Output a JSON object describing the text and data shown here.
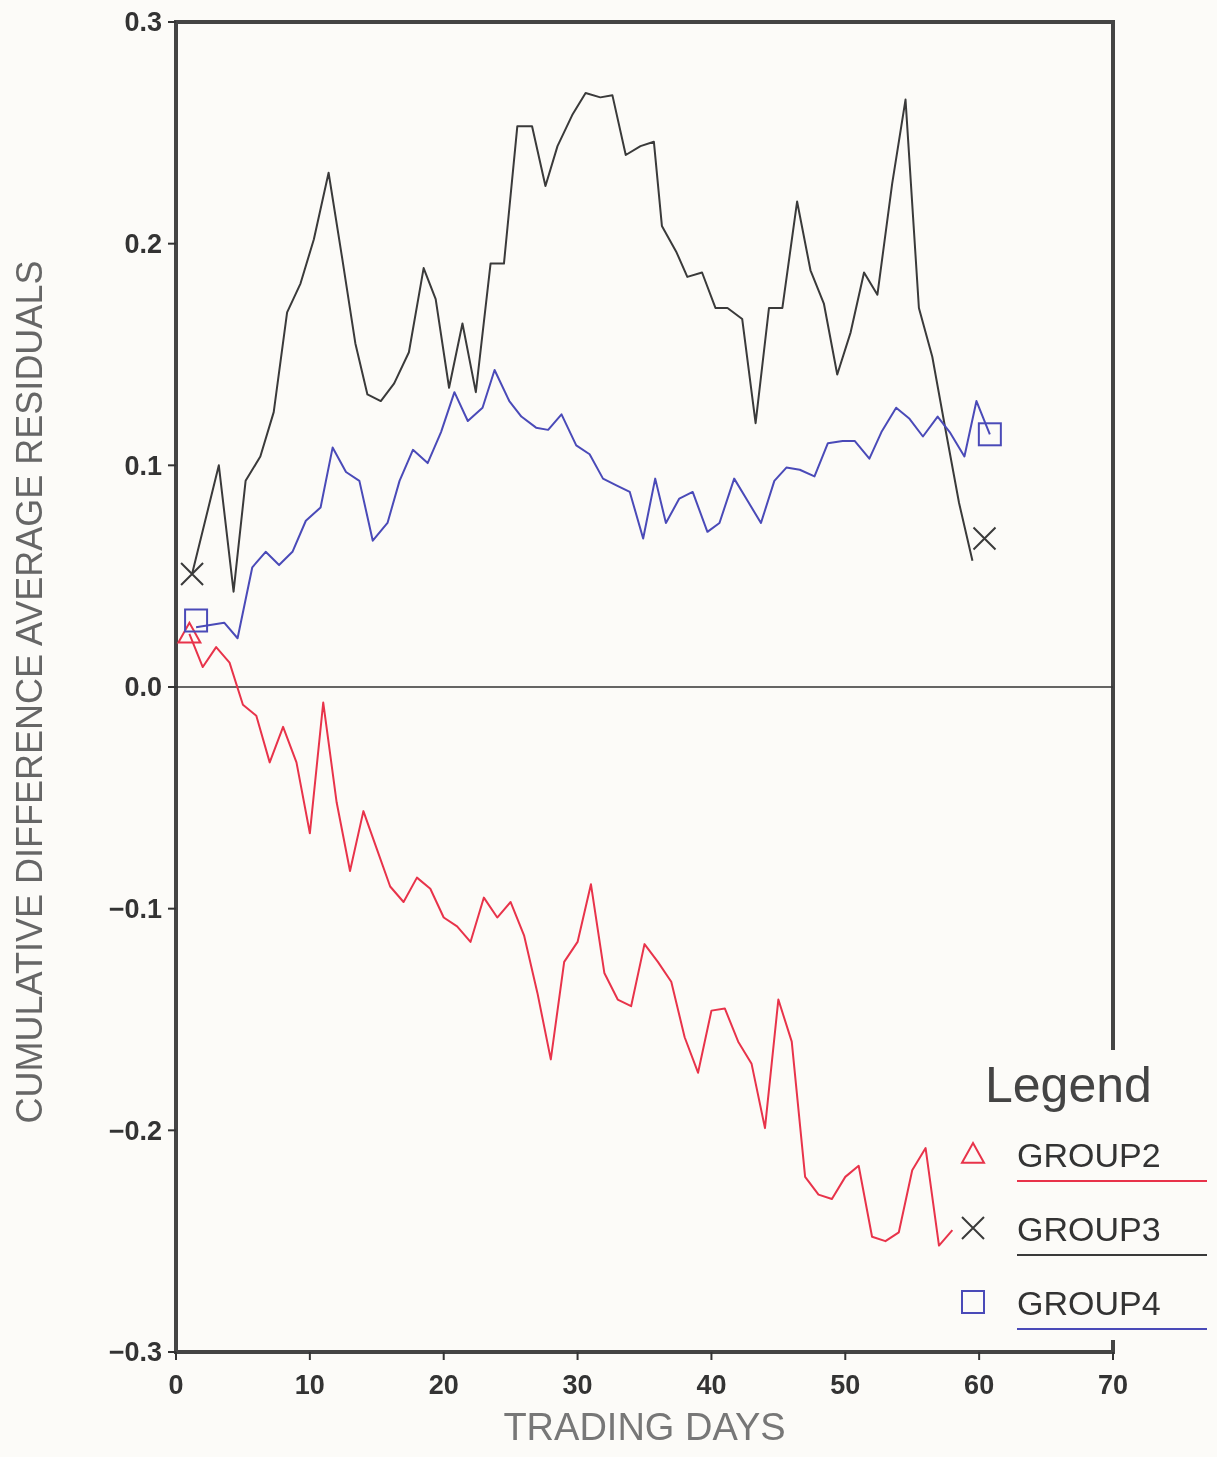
{
  "chart_data": {
    "type": "line",
    "xlabel": "TRADING DAYS",
    "ylabel": "CUMULATIVE DIFFERENCE AVERAGE RESIDUALS",
    "legend_title": "Legend",
    "legend": "bottom right",
    "xlim": [
      0,
      70
    ],
    "xticks": [
      0,
      10,
      20,
      30,
      40,
      50,
      60,
      70
    ],
    "ylim": [
      -0.3,
      0.3
    ],
    "yticks": [
      {
        "value": -0.3,
        "label": "−0.3"
      },
      {
        "value": -0.2,
        "label": "−0.2"
      },
      {
        "value": -0.1,
        "label": "−0.1"
      },
      {
        "value": 0,
        "label": "0.0"
      },
      {
        "value": 0.1,
        "label": "0.1"
      },
      {
        "value": 0.2,
        "label": "0.2"
      },
      {
        "value": 0.3,
        "label": "0.3"
      }
    ],
    "ref_lines": [
      {
        "axis": "y",
        "value": 0,
        "color": "#333333"
      }
    ],
    "line_style": "solid",
    "series": [
      {
        "name": "GROUP2",
        "color": "#e8334a",
        "x": [
          1,
          2,
          3,
          4,
          5,
          6,
          7,
          8,
          9,
          10,
          11,
          12,
          13,
          14,
          15,
          16,
          17,
          18,
          19,
          20,
          21,
          22,
          23,
          24,
          25,
          26,
          27,
          28,
          29,
          30,
          31,
          32,
          33,
          34,
          35,
          36,
          37,
          38,
          39,
          40,
          41,
          42,
          43,
          44,
          45,
          46,
          47,
          48,
          49,
          50,
          51,
          52,
          53,
          54,
          55,
          56,
          57,
          58
        ],
        "values": [
          0.024,
          0.009,
          0.018,
          0.011,
          -0.008,
          -0.013,
          -0.034,
          -0.018,
          -0.034,
          -0.066,
          -0.007,
          -0.052,
          -0.083,
          -0.056,
          -0.073,
          -0.09,
          -0.097,
          -0.086,
          -0.091,
          -0.104,
          -0.108,
          -0.115,
          -0.095,
          -0.104,
          -0.097,
          -0.112,
          -0.138,
          -0.168,
          -0.124,
          -0.115,
          -0.089,
          -0.129,
          -0.141,
          -0.144,
          -0.116,
          -0.124,
          -0.133,
          -0.158,
          -0.174,
          -0.146,
          -0.145,
          -0.16,
          -0.17,
          -0.199,
          -0.141,
          -0.16,
          -0.221,
          -0.229,
          -0.231,
          -0.221,
          -0.216,
          -0.248,
          -0.25,
          -0.246,
          -0.218,
          -0.208,
          -0.252,
          -0.245
        ]
      },
      {
        "type": "scatter",
        "color": "#e8334a",
        "marker": "triangle",
        "x": [
          1
        ],
        "values": [
          0.024
        ]
      },
      {
        "name": "GROUP3",
        "color": "#3a3a3a",
        "x": [
          1.2,
          3.2,
          4.3,
          5.2,
          6.3,
          7.3,
          8.3,
          9.3,
          10.3,
          11.4,
          12.4,
          13.4,
          14.3,
          15.3,
          16.3,
          17.4,
          18.5,
          19.4,
          20.4,
          21.4,
          22.4,
          23.5,
          24.5,
          25.5,
          26.6,
          27.6,
          28.5,
          29.6,
          30.6,
          31.7,
          32.6,
          33.6,
          34.7,
          35.7,
          36.3,
          37.4,
          38.2,
          39.3,
          40.3,
          41.2,
          42.3,
          43.3,
          44.3,
          45.3,
          46.4,
          47.4,
          48.4,
          49.4,
          50.4,
          51.4,
          52.4,
          53.5,
          54.5,
          55.5,
          56.5,
          57.4,
          58.5,
          59.5
        ],
        "values": [
          0.051,
          0.1,
          0.043,
          0.093,
          0.104,
          0.124,
          0.169,
          0.182,
          0.202,
          0.232,
          0.194,
          0.155,
          0.132,
          0.129,
          0.137,
          0.151,
          0.189,
          0.175,
          0.135,
          0.164,
          0.133,
          0.191,
          0.191,
          0.253,
          0.253,
          0.226,
          0.244,
          0.258,
          0.268,
          0.266,
          0.267,
          0.24,
          0.244,
          0.246,
          0.208,
          0.196,
          0.185,
          0.187,
          0.171,
          0.171,
          0.166,
          0.119,
          0.171,
          0.171,
          0.219,
          0.188,
          0.173,
          0.141,
          0.16,
          0.187,
          0.177,
          0.227,
          0.265,
          0.171,
          0.149,
          0.119,
          0.083,
          0.057
        ]
      },
      {
        "type": "scatter",
        "color": "#3a3a3a",
        "marker": "cross",
        "x": [
          1.2,
          60.4
        ],
        "values": [
          0.051,
          0.067
        ]
      },
      {
        "name": "GROUP4",
        "color": "#4a4ab8",
        "x": [
          1.5,
          3.6,
          4.6,
          5.7,
          6.7,
          7.7,
          8.7,
          9.7,
          10.8,
          11.7,
          12.7,
          13.7,
          14.7,
          15.8,
          16.7,
          17.7,
          18.8,
          19.8,
          20.8,
          21.8,
          22.9,
          23.8,
          24.9,
          25.8,
          26.9,
          27.8,
          28.8,
          29.9,
          30.9,
          31.9,
          32.9,
          33.9,
          34.9,
          35.8,
          36.6,
          37.6,
          38.6,
          39.7,
          40.6,
          41.7,
          42.7,
          43.7,
          44.7,
          45.6,
          46.6,
          47.7,
          48.7,
          49.8,
          50.7,
          51.8,
          52.7,
          53.8,
          54.8,
          55.8,
          56.9,
          57.8,
          58.9,
          59.8,
          60.8
        ],
        "values": [
          0.027,
          0.029,
          0.022,
          0.054,
          0.061,
          0.055,
          0.061,
          0.075,
          0.081,
          0.108,
          0.097,
          0.093,
          0.066,
          0.074,
          0.093,
          0.107,
          0.101,
          0.115,
          0.133,
          0.12,
          0.126,
          0.143,
          0.129,
          0.122,
          0.117,
          0.116,
          0.123,
          0.109,
          0.105,
          0.094,
          0.091,
          0.088,
          0.067,
          0.094,
          0.074,
          0.085,
          0.088,
          0.07,
          0.074,
          0.094,
          0.084,
          0.074,
          0.093,
          0.099,
          0.098,
          0.095,
          0.11,
          0.111,
          0.111,
          0.103,
          0.115,
          0.126,
          0.121,
          0.113,
          0.122,
          0.115,
          0.104,
          0.129,
          0.114
        ]
      },
      {
        "type": "scatter",
        "color": "#4a4ab8",
        "marker": "square",
        "x": [
          1.5,
          60.8
        ],
        "values": [
          0.03,
          0.114
        ]
      }
    ]
  }
}
